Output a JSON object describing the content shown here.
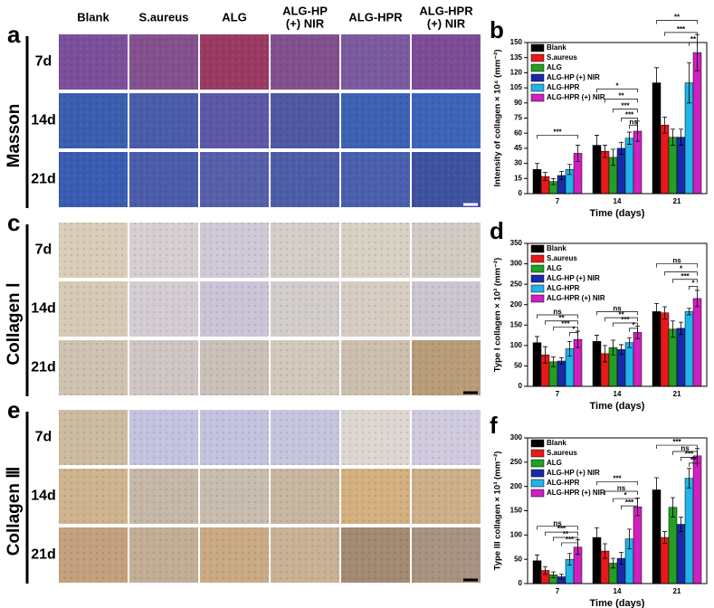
{
  "figure": {
    "columns": [
      [
        "Blank"
      ],
      [
        "S.aureus"
      ],
      [
        "ALG"
      ],
      [
        "ALG-HP",
        "(+) NIR"
      ],
      [
        "ALG-HPR"
      ],
      [
        "ALG-HPR",
        "(+) NIR"
      ]
    ],
    "panels": [
      {
        "letter": "a",
        "label": "Masson",
        "rows": [
          "7d",
          "14d",
          "21d"
        ]
      },
      {
        "letter": "c",
        "label": "Collagen Ⅰ",
        "rows": [
          "7d",
          "14d",
          "21d"
        ]
      },
      {
        "letter": "e",
        "label": "Collagen Ⅲ",
        "rows": [
          "7d",
          "14d",
          "21d"
        ]
      }
    ]
  },
  "chart_data": [
    {
      "type": "bar",
      "panel": "b",
      "y_label": "Intensity of collagen × 10⁴ (mm⁻²)",
      "x_label": "Time (days)",
      "categories": [
        "7",
        "14",
        "21"
      ],
      "ylim": [
        0,
        150
      ],
      "yticks": [
        0,
        15,
        30,
        45,
        60,
        75,
        90,
        105,
        120,
        135,
        150
      ],
      "series": [
        {
          "name": "Blank",
          "color": "#000000",
          "values": [
            24,
            48,
            110
          ],
          "errors": [
            6,
            10,
            15
          ]
        },
        {
          "name": "S.aureus",
          "color": "#e8191a",
          "values": [
            17,
            42,
            68
          ],
          "errors": [
            4,
            6,
            8
          ]
        },
        {
          "name": "ALG",
          "color": "#22a022",
          "values": [
            12,
            36,
            56
          ],
          "errors": [
            3,
            8,
            8
          ]
        },
        {
          "name": "ALG-HP (+) NIR",
          "color": "#1a2aa8",
          "values": [
            18,
            45,
            56
          ],
          "errors": [
            4,
            6,
            8
          ]
        },
        {
          "name": "ALG-HPR",
          "color": "#20b4e8",
          "values": [
            24,
            55,
            110
          ],
          "errors": [
            5,
            6,
            20
          ]
        },
        {
          "name": "ALG-HPR (+) NIR",
          "color": "#d020c0",
          "values": [
            40,
            62,
            140
          ],
          "errors": [
            8,
            10,
            18
          ]
        }
      ],
      "annotations": [
        "***",
        "*",
        "**",
        "***",
        "***",
        "ns",
        "**",
        "***",
        "**"
      ]
    },
    {
      "type": "bar",
      "panel": "d",
      "y_label": "Type I collagen × 10³ (mm⁻²)",
      "x_label": "Time (days)",
      "categories": [
        "7",
        "14",
        "21"
      ],
      "ylim": [
        0,
        350
      ],
      "yticks": [
        0,
        50,
        100,
        150,
        200,
        250,
        300,
        350
      ],
      "series": [
        {
          "name": "Blank",
          "color": "#000000",
          "values": [
            107,
            110,
            183
          ],
          "errors": [
            15,
            15,
            20
          ]
        },
        {
          "name": "S.aureus",
          "color": "#e8191a",
          "values": [
            77,
            80,
            180
          ],
          "errors": [
            20,
            20,
            15
          ]
        },
        {
          "name": "ALG",
          "color": "#22a022",
          "values": [
            60,
            95,
            140
          ],
          "errors": [
            12,
            18,
            20
          ]
        },
        {
          "name": "ALG-HP (+) NIR",
          "color": "#1a2aa8",
          "values": [
            62,
            90,
            142
          ],
          "errors": [
            8,
            12,
            15
          ]
        },
        {
          "name": "ALG-HPR",
          "color": "#20b4e8",
          "values": [
            92,
            107,
            183
          ],
          "errors": [
            18,
            12,
            8
          ]
        },
        {
          "name": "ALG-HPR (+) NIR",
          "color": "#d020c0",
          "values": [
            115,
            132,
            215
          ],
          "errors": [
            20,
            15,
            20
          ]
        }
      ],
      "annotations": [
        "ns",
        "**",
        "***",
        "*",
        "ns",
        "**",
        "***",
        "*",
        "ns",
        "*",
        "***",
        "*"
      ]
    },
    {
      "type": "bar",
      "panel": "f",
      "y_label": "Type III collagen × 10³ (mm⁻²)",
      "x_label": "Time (days)",
      "categories": [
        "7",
        "14",
        "21"
      ],
      "ylim": [
        0,
        300
      ],
      "yticks": [
        0,
        50,
        100,
        150,
        200,
        250,
        300
      ],
      "series": [
        {
          "name": "Blank",
          "color": "#000000",
          "values": [
            47,
            95,
            193
          ],
          "errors": [
            12,
            20,
            25
          ]
        },
        {
          "name": "S.aureus",
          "color": "#e8191a",
          "values": [
            27,
            67,
            95
          ],
          "errors": [
            8,
            15,
            12
          ]
        },
        {
          "name": "ALG",
          "color": "#22a022",
          "values": [
            18,
            42,
            157
          ],
          "errors": [
            6,
            10,
            20
          ]
        },
        {
          "name": "ALG-HP (+) NIR",
          "color": "#1a2aa8",
          "values": [
            14,
            52,
            122
          ],
          "errors": [
            5,
            12,
            15
          ]
        },
        {
          "name": "ALG-HPR",
          "color": "#20b4e8",
          "values": [
            50,
            92,
            217
          ],
          "errors": [
            12,
            20,
            20
          ]
        },
        {
          "name": "ALG-HPR (+) NIR",
          "color": "#d020c0",
          "values": [
            75,
            158,
            263
          ],
          "errors": [
            15,
            18,
            15
          ]
        }
      ],
      "annotations": [
        "ns",
        "***",
        "**",
        "***",
        "***",
        "ns",
        "*",
        "***",
        "***",
        "ns",
        "***",
        "**"
      ]
    }
  ]
}
